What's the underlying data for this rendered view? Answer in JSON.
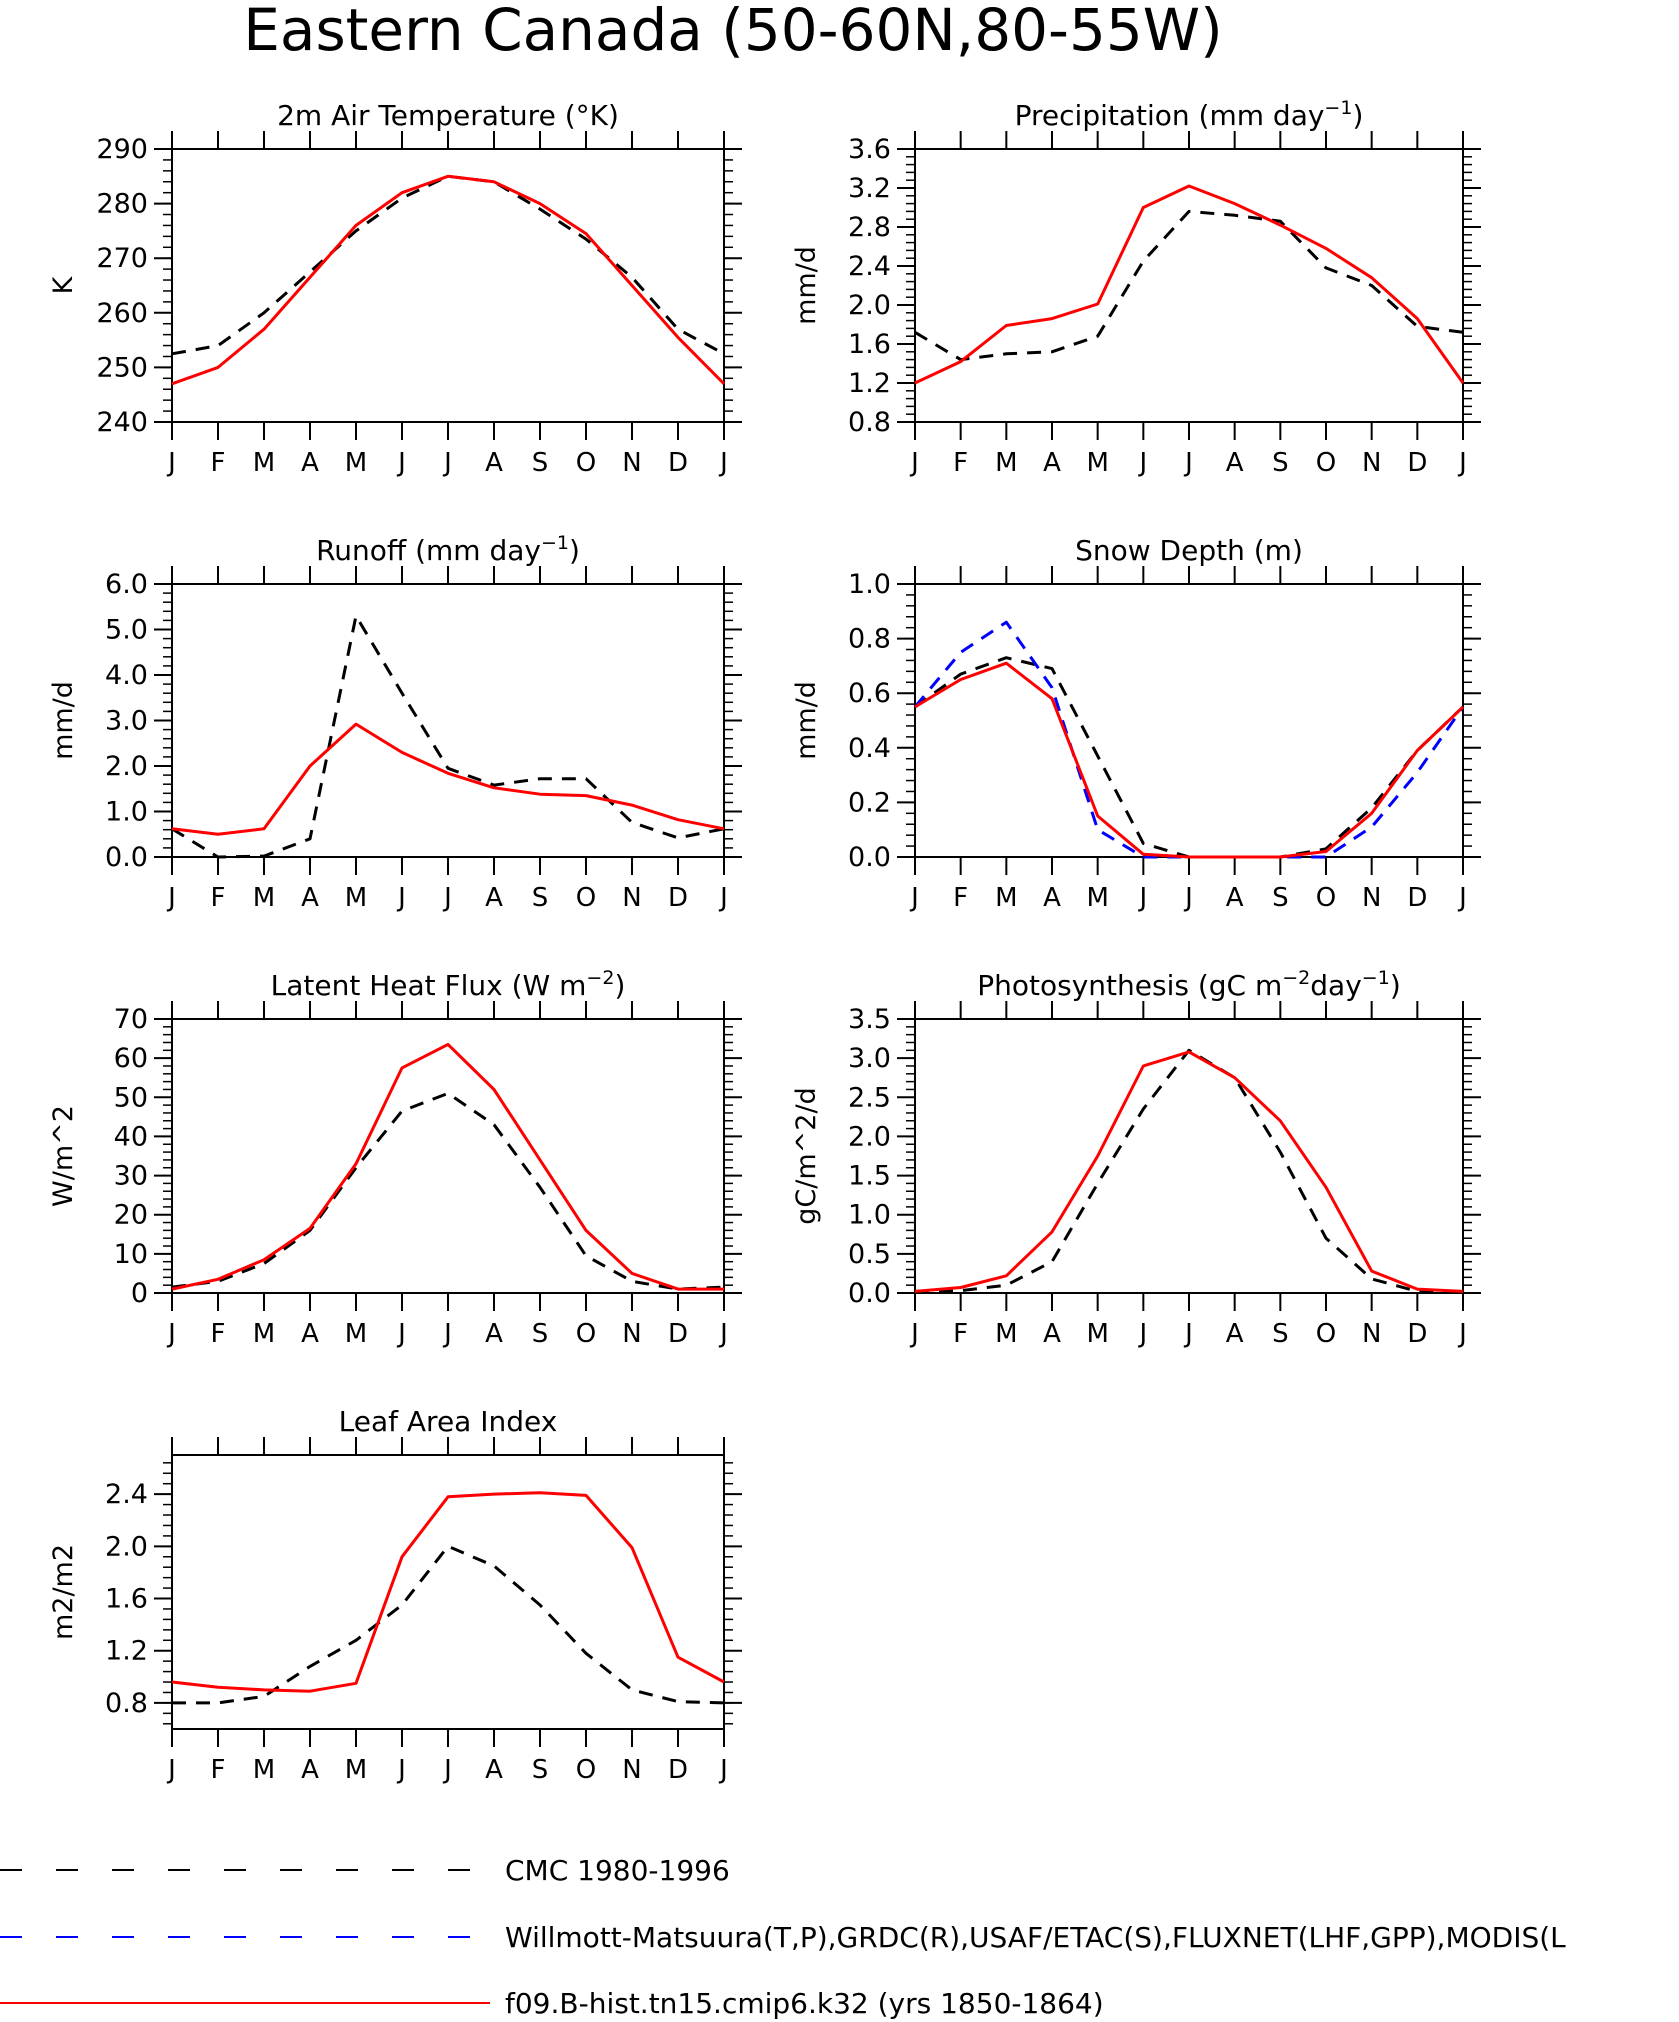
{
  "title": "Eastern Canada (50-60N,80-55W)",
  "legend": [
    {
      "label": "CMC 1980-1996",
      "color": "#000000",
      "dash": "dashed"
    },
    {
      "label": "Willmott-Matsuura(T,P),GRDC(R),USAF/ETAC(S),FLUXNET(LHF,GPP),MODIS(L",
      "color": "#0000ff",
      "dash": "dashed"
    },
    {
      "label": "f09.B-hist.tn15.cmip6.k32 (yrs 1850-1864)",
      "color": "#ff0000",
      "dash": "solid"
    }
  ],
  "chart_data": [
    {
      "type": "line",
      "title": "2m Air Temperature (°K)",
      "ylabel": "K",
      "ylim": [
        240,
        290
      ],
      "yticks": [
        "240",
        "250",
        "260",
        "270",
        "280",
        "290"
      ],
      "categories": [
        "J",
        "F",
        "M",
        "A",
        "M",
        "J",
        "J",
        "A",
        "S",
        "O",
        "N",
        "D",
        "J"
      ],
      "series": [
        {
          "name": "CMC 1980-1996",
          "color": "#000000",
          "dash": true,
          "values": [
            252.5,
            254,
            260,
            267.5,
            275,
            281,
            285,
            284,
            279,
            273.5,
            266.5,
            257,
            252.5
          ]
        },
        {
          "name": "f09.B-hist.tn15.cmip6.k32 (yrs 1850-1864)",
          "color": "#ff0000",
          "dash": false,
          "values": [
            247,
            250,
            257,
            266.5,
            276,
            282,
            285,
            284,
            280,
            274.5,
            265,
            255.5,
            247
          ]
        }
      ]
    },
    {
      "type": "line",
      "title": "Precipitation (mm day-1)",
      "ylabel": "mm/d",
      "ylim": [
        0.8,
        3.6
      ],
      "yticks": [
        "0.8",
        "1.2",
        "1.6",
        "2.0",
        "2.4",
        "2.8",
        "3.2",
        "3.6"
      ],
      "categories": [
        "J",
        "F",
        "M",
        "A",
        "M",
        "J",
        "J",
        "A",
        "S",
        "O",
        "N",
        "D",
        "J"
      ],
      "series": [
        {
          "name": "CMC 1980-1996",
          "color": "#000000",
          "dash": true,
          "values": [
            1.72,
            1.44,
            1.5,
            1.52,
            1.68,
            2.45,
            2.96,
            2.92,
            2.86,
            2.38,
            2.2,
            1.78,
            1.72
          ]
        },
        {
          "name": "f09.B-hist.tn15.cmip6.k32 (yrs 1850-1864)",
          "color": "#ff0000",
          "dash": false,
          "values": [
            1.2,
            1.42,
            1.79,
            1.86,
            2.01,
            3.0,
            3.22,
            3.04,
            2.82,
            2.58,
            2.28,
            1.86,
            1.2
          ]
        }
      ]
    },
    {
      "type": "line",
      "title": "Runoff (mm day-1)",
      "ylabel": "mm/d",
      "ylim": [
        0,
        6
      ],
      "yticks": [
        "0.0",
        "1.0",
        "2.0",
        "3.0",
        "4.0",
        "5.0",
        "6.0"
      ],
      "categories": [
        "J",
        "F",
        "M",
        "A",
        "M",
        "J",
        "J",
        "A",
        "S",
        "O",
        "N",
        "D",
        "J"
      ],
      "series": [
        {
          "name": "CMC 1980-1996",
          "color": "#000000",
          "dash": true,
          "values": [
            0.62,
            0.0,
            0.02,
            0.4,
            5.3,
            3.6,
            1.95,
            1.58,
            1.72,
            1.72,
            0.76,
            0.42,
            0.62
          ]
        },
        {
          "name": "f09.B-hist.tn15.cmip6.k32 (yrs 1850-1864)",
          "color": "#ff0000",
          "dash": false,
          "values": [
            0.62,
            0.5,
            0.62,
            2.0,
            2.92,
            2.3,
            1.84,
            1.52,
            1.38,
            1.35,
            1.14,
            0.82,
            0.62
          ]
        }
      ]
    },
    {
      "type": "line",
      "title": "Snow Depth (m)",
      "ylabel": "mm/d",
      "ylim": [
        0,
        1
      ],
      "yticks": [
        "0.0",
        "0.2",
        "0.4",
        "0.6",
        "0.8",
        "1.0"
      ],
      "categories": [
        "J",
        "F",
        "M",
        "A",
        "M",
        "J",
        "J",
        "A",
        "S",
        "O",
        "N",
        "D",
        "J"
      ],
      "series": [
        {
          "name": "CMC 1980-1996",
          "color": "#000000",
          "dash": true,
          "values": [
            0.55,
            0.67,
            0.73,
            0.69,
            0.37,
            0.05,
            0.0,
            0.0,
            0.0,
            0.03,
            0.18,
            0.39,
            0.55
          ]
        },
        {
          "name": "Willmott-Matsuura(T,P),GRDC(R),USAF/ETAC(S),FLUXNET(LHF,GPP),MODIS(L",
          "color": "#0000ff",
          "dash": true,
          "values": [
            0.55,
            0.75,
            0.86,
            0.62,
            0.1,
            0.0,
            0.0,
            0.0,
            0.0,
            0.0,
            0.11,
            0.31,
            0.55
          ]
        },
        {
          "name": "f09.B-hist.tn15.cmip6.k32 (yrs 1850-1864)",
          "color": "#ff0000",
          "dash": false,
          "values": [
            0.55,
            0.65,
            0.71,
            0.58,
            0.15,
            0.01,
            0.0,
            0.0,
            0.0,
            0.02,
            0.16,
            0.39,
            0.55
          ]
        }
      ]
    },
    {
      "type": "line",
      "title": "Latent Heat Flux (W m-2)",
      "ylabel": "W/m^2",
      "ylim": [
        0,
        70
      ],
      "yticks": [
        "0",
        "10",
        "20",
        "30",
        "40",
        "50",
        "60",
        "70"
      ],
      "categories": [
        "J",
        "F",
        "M",
        "A",
        "M",
        "J",
        "J",
        "A",
        "S",
        "O",
        "N",
        "D",
        "J"
      ],
      "series": [
        {
          "name": "CMC 1980-1996",
          "color": "#000000",
          "dash": true,
          "values": [
            1.5,
            3,
            7.5,
            16,
            32,
            46.5,
            51,
            43,
            27,
            9.5,
            3,
            1,
            1.5
          ]
        },
        {
          "name": "f09.B-hist.tn15.cmip6.k32 (yrs 1850-1864)",
          "color": "#ff0000",
          "dash": false,
          "values": [
            1,
            3.5,
            8.5,
            16.5,
            33,
            57.5,
            63.5,
            52,
            34,
            16,
            5,
            1,
            1
          ]
        }
      ]
    },
    {
      "type": "line",
      "title": "Photosynthesis (gC m-2day-1)",
      "ylabel": "gC/m^2/d",
      "ylim": [
        0,
        3.5
      ],
      "yticks": [
        "0.0",
        "0.5",
        "1.0",
        "1.5",
        "2.0",
        "2.5",
        "3.0",
        "3.5"
      ],
      "categories": [
        "J",
        "F",
        "M",
        "A",
        "M",
        "J",
        "J",
        "A",
        "S",
        "O",
        "N",
        "D",
        "J"
      ],
      "series": [
        {
          "name": "CMC 1980-1996",
          "color": "#000000",
          "dash": true,
          "values": [
            0.02,
            0.03,
            0.1,
            0.4,
            1.4,
            2.35,
            3.1,
            2.75,
            1.8,
            0.7,
            0.18,
            0.02,
            0.02
          ]
        },
        {
          "name": "f09.B-hist.tn15.cmip6.k32 (yrs 1850-1864)",
          "color": "#ff0000",
          "dash": false,
          "values": [
            0.02,
            0.07,
            0.22,
            0.78,
            1.75,
            2.9,
            3.08,
            2.75,
            2.2,
            1.35,
            0.28,
            0.05,
            0.02
          ]
        }
      ]
    },
    {
      "type": "line",
      "title": "Leaf Area Index",
      "ylabel": "m2/m2",
      "ylim": [
        0.6,
        2.7
      ],
      "yticks": [
        "0.8",
        "1.2",
        "1.6",
        "2.0",
        "2.4"
      ],
      "categories": [
        "J",
        "F",
        "M",
        "A",
        "M",
        "J",
        "J",
        "A",
        "S",
        "O",
        "N",
        "D",
        "J"
      ],
      "series": [
        {
          "name": "CMC 1980-1996",
          "color": "#000000",
          "dash": true,
          "values": [
            0.8,
            0.8,
            0.85,
            1.08,
            1.28,
            1.55,
            2.0,
            1.85,
            1.55,
            1.18,
            0.9,
            0.81,
            0.8
          ]
        },
        {
          "name": "f09.B-hist.tn15.cmip6.k32 (yrs 1850-1864)",
          "color": "#ff0000",
          "dash": false,
          "values": [
            0.96,
            0.92,
            0.9,
            0.89,
            0.95,
            1.92,
            2.38,
            2.4,
            2.41,
            2.39,
            1.99,
            1.15,
            0.96
          ]
        }
      ]
    }
  ]
}
